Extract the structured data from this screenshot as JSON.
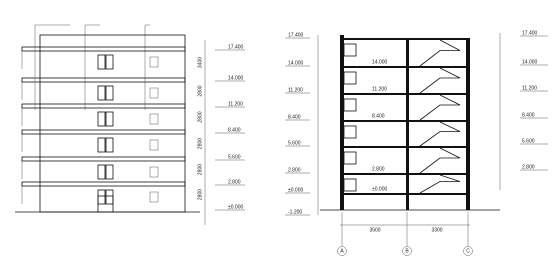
{
  "elevation": {
    "levels": [
      "17.400",
      "14.000",
      "11.200",
      "8.400",
      "5.600",
      "2.800",
      "±0.000"
    ],
    "dims": [
      "3400",
      "2800",
      "2800",
      "2800",
      "2800",
      "2800"
    ]
  },
  "section": {
    "left_levels": [
      "17.400",
      "14.000",
      "11.200",
      "8.400",
      "5.600",
      "2.800",
      "±0.000",
      "-1.200"
    ],
    "right_levels": [
      "17.400",
      "14.000",
      "11.200",
      "8.400",
      "5.600",
      "2.800"
    ],
    "room_levels": [
      "14.000",
      "11.200",
      "8.400",
      "2.800",
      "±0.000"
    ],
    "bottom_dims": [
      "3500",
      "3300"
    ],
    "axes": [
      "A",
      "B",
      "C"
    ]
  }
}
